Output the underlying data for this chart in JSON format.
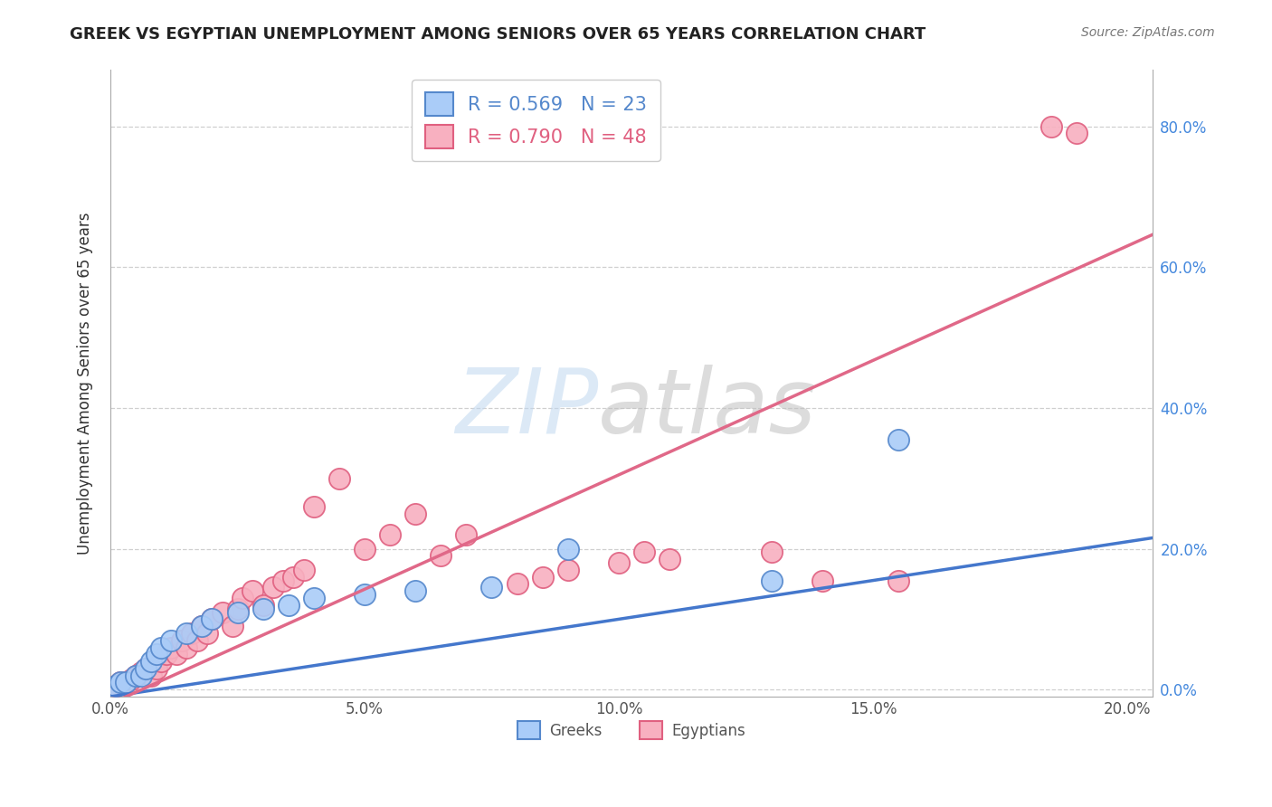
{
  "title": "GREEK VS EGYPTIAN UNEMPLOYMENT AMONG SENIORS OVER 65 YEARS CORRELATION CHART",
  "source": "Source: ZipAtlas.com",
  "ylabel": "Unemployment Among Seniors over 65 years",
  "xlim": [
    0.0,
    0.205
  ],
  "ylim": [
    -0.01,
    0.88
  ],
  "xtick_labels": [
    "0.0%",
    "5.0%",
    "10.0%",
    "15.0%",
    "20.0%"
  ],
  "xtick_vals": [
    0.0,
    0.05,
    0.1,
    0.15,
    0.2
  ],
  "ytick_labels": [
    "0.0%",
    "20.0%",
    "40.0%",
    "60.0%",
    "80.0%"
  ],
  "ytick_vals": [
    0.0,
    0.2,
    0.4,
    0.6,
    0.8
  ],
  "greek_fill_color": "#aaccf8",
  "greek_edge_color": "#5588cc",
  "egyptian_fill_color": "#f8b0c0",
  "egyptian_edge_color": "#e06080",
  "greek_line_color": "#4477cc",
  "egyptian_line_color": "#e06888",
  "greek_R": 0.569,
  "greek_N": 23,
  "egyptian_R": 0.79,
  "egyptian_N": 48,
  "legend_label_greek": "Greeks",
  "legend_label_egyptian": "Egyptians",
  "background_color": "#ffffff",
  "grid_color": "#bbbbbb",
  "title_color": "#222222",
  "source_color": "#777777",
  "axis_label_color": "#333333",
  "right_tick_color": "#4488dd",
  "greek_scatter_x": [
    0.001,
    0.002,
    0.003,
    0.005,
    0.006,
    0.007,
    0.008,
    0.009,
    0.01,
    0.012,
    0.015,
    0.018,
    0.02,
    0.025,
    0.03,
    0.035,
    0.04,
    0.05,
    0.06,
    0.075,
    0.09,
    0.13,
    0.155
  ],
  "greek_scatter_y": [
    0.005,
    0.01,
    0.01,
    0.02,
    0.02,
    0.03,
    0.04,
    0.05,
    0.06,
    0.07,
    0.08,
    0.09,
    0.1,
    0.11,
    0.115,
    0.12,
    0.13,
    0.135,
    0.14,
    0.145,
    0.2,
    0.155,
    0.355
  ],
  "egyptian_scatter_x": [
    0.001,
    0.002,
    0.003,
    0.004,
    0.005,
    0.006,
    0.007,
    0.008,
    0.009,
    0.01,
    0.011,
    0.012,
    0.013,
    0.014,
    0.015,
    0.016,
    0.017,
    0.018,
    0.019,
    0.02,
    0.022,
    0.024,
    0.025,
    0.026,
    0.028,
    0.03,
    0.032,
    0.034,
    0.036,
    0.038,
    0.04,
    0.045,
    0.05,
    0.055,
    0.06,
    0.065,
    0.07,
    0.08,
    0.085,
    0.09,
    0.1,
    0.105,
    0.11,
    0.13,
    0.14,
    0.155,
    0.185,
    0.19
  ],
  "egyptian_scatter_y": [
    0.005,
    0.01,
    0.01,
    0.015,
    0.02,
    0.025,
    0.03,
    0.02,
    0.03,
    0.04,
    0.05,
    0.06,
    0.05,
    0.07,
    0.06,
    0.08,
    0.07,
    0.09,
    0.08,
    0.1,
    0.11,
    0.09,
    0.115,
    0.13,
    0.14,
    0.12,
    0.145,
    0.155,
    0.16,
    0.17,
    0.26,
    0.3,
    0.2,
    0.22,
    0.25,
    0.19,
    0.22,
    0.15,
    0.16,
    0.17,
    0.18,
    0.195,
    0.185,
    0.195,
    0.155,
    0.155,
    0.8,
    0.79
  ]
}
